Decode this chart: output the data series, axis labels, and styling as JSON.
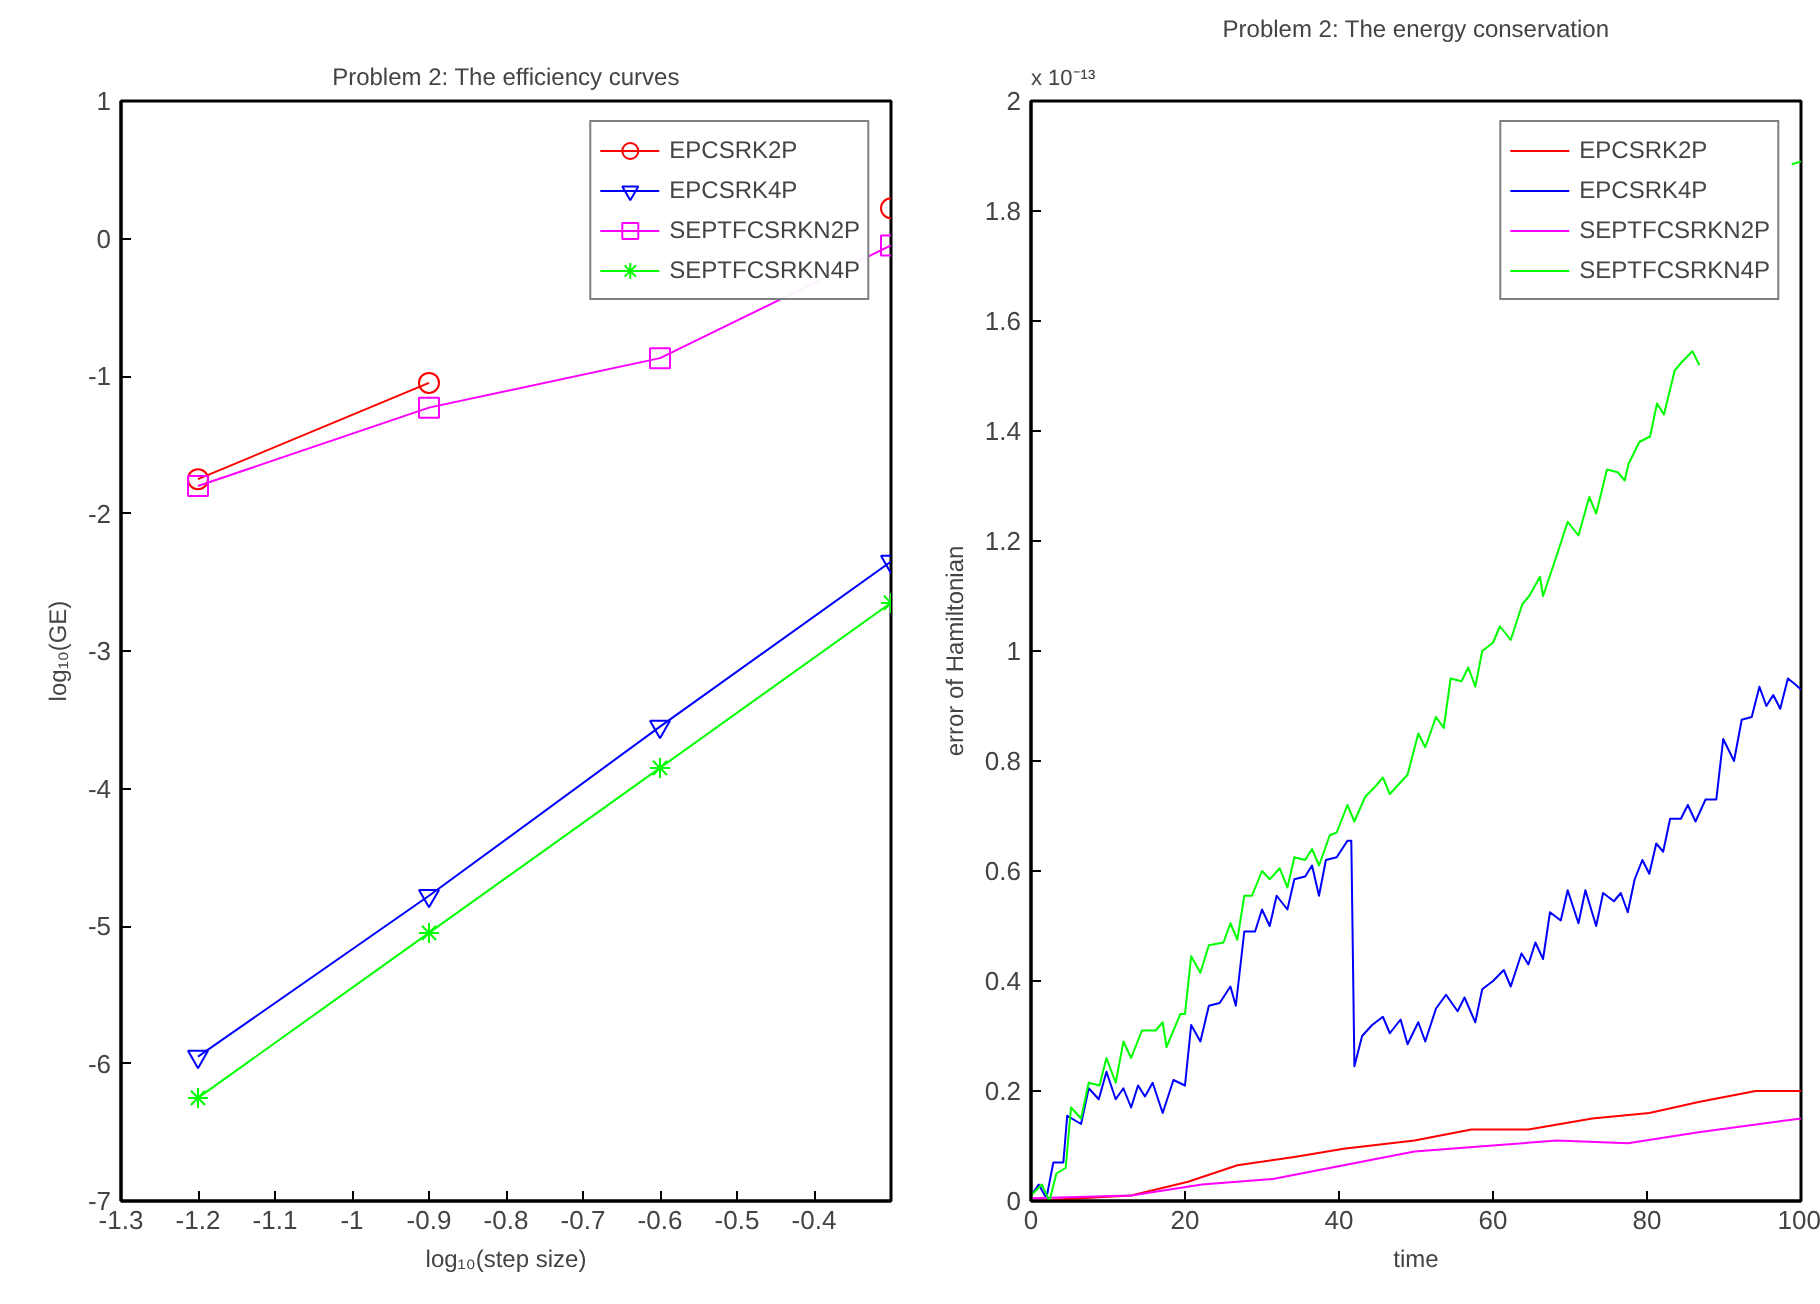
{
  "chart_data": [
    {
      "type": "line",
      "title": "Problem 2: The efficiency curves",
      "xlabel": "log₁₀(step size)",
      "ylabel": "log₁₀(GE)",
      "x": [
        -1.2,
        -0.9,
        -0.6,
        -0.3
      ],
      "xlim": [
        -1.3,
        -0.3
      ],
      "xticks": [
        -1.3,
        -1.2,
        -1.1,
        -1,
        -0.9,
        -0.8,
        -0.7,
        -0.6,
        -0.5,
        -0.4
      ],
      "ylim": [
        -7,
        1
      ],
      "yticks": [
        -7,
        -6,
        -5,
        -4,
        -3,
        -2,
        -1,
        0,
        1
      ],
      "grid": false,
      "legend": "top right",
      "line_style": "solid",
      "series": [
        {
          "name": "EPCSRK2P",
          "color": "#ff0000",
          "marker": "circle",
          "values": [
            -1.75,
            -1.05,
            null,
            0.22
          ]
        },
        {
          "name": "EPCSRK4P",
          "color": "#0000ff",
          "marker": "triangle",
          "values": [
            -5.95,
            -4.78,
            -3.55,
            -2.35
          ]
        },
        {
          "name": "SEPTFCSRKN2P",
          "color": "#ff00ff",
          "marker": "square",
          "values": [
            -1.8,
            -1.23,
            -0.87,
            -0.05
          ]
        },
        {
          "name": "SEPTFCSRKN4P",
          "color": "#00ff00",
          "marker": "cross",
          "values": [
            -6.25,
            -5.05,
            -3.85,
            -2.65
          ]
        }
      ]
    },
    {
      "type": "line",
      "title": "Problem 2: The energy conservation",
      "xlabel": "time",
      "ylabel": "error of Hamiltonian",
      "annotations": [
        "x 10⁻¹³"
      ],
      "xlim": [
        0,
        100
      ],
      "xticks": [
        0,
        20,
        40,
        60,
        80,
        100
      ],
      "ylim": [
        0,
        2
      ],
      "yticks": [
        0,
        0.2,
        0.4,
        0.6,
        0.8,
        1,
        1.2,
        1.4,
        1.6,
        1.8,
        2
      ],
      "grid": false,
      "legend": "top right",
      "marker": "none",
      "line_style": "solid",
      "series": [
        {
          "name": "EPCSRK2P",
          "color": "#ff0000",
          "x": [
            0,
            13,
            20.4,
            26.8,
            34.2,
            40.6,
            49.8,
            57.2,
            64.6,
            72.9,
            80.3,
            86.7,
            94.1,
            100
          ],
          "values": [
            0,
            0.01,
            0.035,
            0.065,
            0.08,
            0.095,
            0.11,
            0.13,
            0.13,
            0.15,
            0.16,
            0.18,
            0.2,
            0.2
          ]
        },
        {
          "name": "EPCSRK4P",
          "color": "#0000ff",
          "x": [
            0,
            1,
            2,
            2.9,
            4.2,
            4.7,
            6.5,
            7.5,
            8.8,
            9.8,
            11,
            12,
            13,
            13.9,
            14.8,
            15.8,
            17.1,
            18.5,
            20,
            20.8,
            22,
            23.1,
            24.5,
            25.9,
            26.6,
            27.7,
            29.1,
            30,
            31,
            31.9,
            33.3,
            34.2,
            35.6,
            36.5,
            37.4,
            38.3,
            39.7,
            41.1,
            41.6,
            42,
            43,
            44.3,
            45.7,
            46.6,
            48,
            48.9,
            50.3,
            51.2,
            52.6,
            53.9,
            55.4,
            56.3,
            57.7,
            58.6,
            60,
            61.4,
            62.3,
            63.7,
            64.6,
            65.5,
            66.5,
            67.4,
            68.8,
            69.7,
            71.1,
            72,
            73.4,
            74.3,
            75.7,
            76.6,
            77.5,
            78.4,
            79.4,
            80.3,
            81.2,
            82.1,
            83,
            84.4,
            85.3,
            86.3,
            87.6,
            89,
            89.9,
            91.3,
            92.3,
            93.6,
            94.6,
            95.5,
            96.4,
            97.3,
            98.3,
            99.2,
            100
          ],
          "values": [
            0.01,
            0.03,
            0.005,
            0.07,
            0.07,
            0.155,
            0.14,
            0.205,
            0.185,
            0.235,
            0.185,
            0.205,
            0.17,
            0.21,
            0.19,
            0.215,
            0.16,
            0.22,
            0.21,
            0.32,
            0.29,
            0.355,
            0.36,
            0.39,
            0.355,
            0.49,
            0.49,
            0.53,
            0.5,
            0.555,
            0.53,
            0.585,
            0.59,
            0.61,
            0.555,
            0.62,
            0.625,
            0.655,
            0.655,
            0.245,
            0.3,
            0.32,
            0.335,
            0.305,
            0.33,
            0.285,
            0.325,
            0.29,
            0.35,
            0.375,
            0.345,
            0.37,
            0.325,
            0.385,
            0.4,
            0.42,
            0.39,
            0.45,
            0.43,
            0.47,
            0.44,
            0.525,
            0.51,
            0.565,
            0.505,
            0.565,
            0.5,
            0.56,
            0.545,
            0.56,
            0.525,
            0.585,
            0.62,
            0.595,
            0.65,
            0.635,
            0.695,
            0.695,
            0.72,
            0.69,
            0.73,
            0.73,
            0.84,
            0.8,
            0.875,
            0.88,
            0.935,
            0.9,
            0.92,
            0.895,
            0.95,
            0.94,
            0.93
          ]
        },
        {
          "name": "SEPTFCSRKN2P",
          "color": "#ff00ff",
          "x": [
            0,
            13,
            22.2,
            31.4,
            40.6,
            49.8,
            59.1,
            68.3,
            77.5,
            86.7,
            100
          ],
          "values": [
            0.005,
            0.01,
            0.03,
            0.04,
            0.065,
            0.09,
            0.1,
            0.11,
            0.105,
            0.125,
            0.15
          ]
        },
        {
          "name": "SEPTFCSRKN4P",
          "color": "#00ff00",
          "x": [
            0,
            1.4,
            2.4,
            3.3,
            4.5,
            5.2,
            6.5,
            7.5,
            8.9,
            9.8,
            11,
            12,
            13,
            14.4,
            16.2,
            17.1,
            17.6,
            19.4,
            20,
            20.8,
            22,
            23.1,
            25,
            25.9,
            26.8,
            27.7,
            28.7,
            30,
            31,
            32.3,
            33.3,
            34.2,
            35.6,
            36.5,
            37.4,
            38.8,
            39.7,
            41.1,
            42,
            43.4,
            44.8,
            45.7,
            46.6,
            48.9,
            50.3,
            51.2,
            52.6,
            53.6,
            54.5,
            55.9,
            56.8,
            57.7,
            58.6,
            60,
            60.9,
            62.3,
            63.8,
            64.7,
            66.1,
            66.5,
            68.3,
            69.7,
            71.1,
            72.5,
            73.4,
            74.8,
            76.2,
            77.1,
            77.6,
            79,
            80.4,
            81.3,
            82.2,
            83.6,
            84.5,
            85.9,
            86.8,
            93,
            98.8,
            100
          ],
          "values": [
            0.01,
            0.03,
            0.0,
            0.05,
            0.06,
            0.17,
            0.15,
            0.215,
            0.21,
            0.26,
            0.215,
            0.29,
            0.26,
            0.31,
            0.31,
            0.325,
            0.28,
            0.34,
            0.34,
            0.445,
            0.415,
            0.465,
            0.47,
            0.505,
            0.475,
            0.555,
            0.555,
            0.6,
            0.585,
            0.605,
            0.57,
            0.625,
            0.62,
            0.64,
            0.61,
            0.665,
            0.67,
            0.72,
            0.69,
            0.735,
            0.755,
            0.77,
            0.74,
            0.775,
            0.85,
            0.825,
            0.88,
            0.86,
            0.95,
            0.945,
            0.97,
            0.935,
            1.0,
            1.015,
            1.045,
            1.02,
            1.085,
            1.1,
            1.135,
            1.1,
            1.175,
            1.235,
            1.21,
            1.28,
            1.25,
            1.33,
            1.325,
            1.31,
            1.34,
            1.38,
            1.39,
            1.45,
            1.43,
            1.51,
            1.525,
            1.545,
            1.52,
            null,
            1.885,
            1.89
          ]
        }
      ]
    }
  ]
}
